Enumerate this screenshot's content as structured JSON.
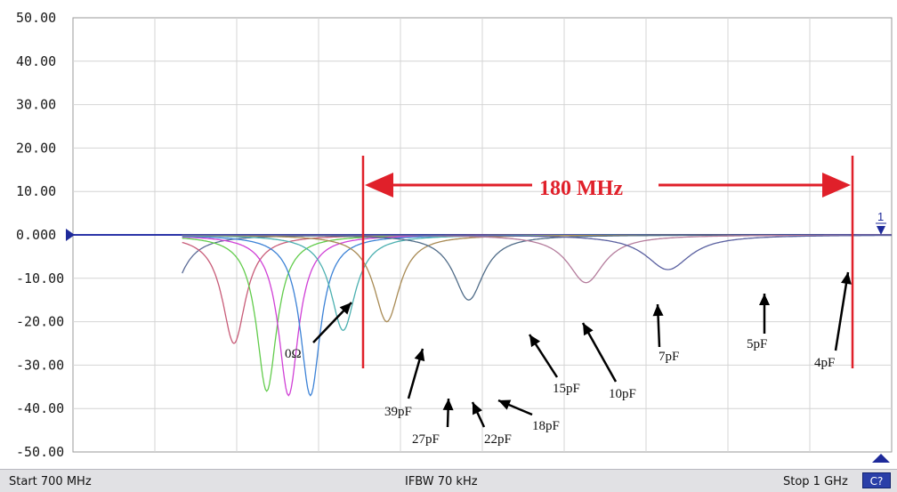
{
  "chart_data": {
    "type": "line",
    "title": "",
    "xlabel": "",
    "ylabel": "",
    "xlim": [
      700,
      1000
    ],
    "ylim": [
      -50,
      50
    ],
    "yticks": [
      "50.00",
      "40.00",
      "30.00",
      "20.00",
      "10.00",
      "0.000",
      "-10.00",
      "-20.00",
      "-30.00",
      "-40.00",
      "-50.00"
    ],
    "grid": true,
    "x_unit": "MHz",
    "series": [
      {
        "name": "0Ω",
        "resonance_mhz": 734,
        "min_db": -17,
        "color": "#5a6a96"
      },
      {
        "name": "39pF",
        "resonance_mhz": 759,
        "min_db": -25,
        "color": "#c85c78"
      },
      {
        "name": "27pF",
        "resonance_mhz": 771,
        "min_db": -36,
        "color": "#62cc4c"
      },
      {
        "name": "22pF",
        "resonance_mhz": 779,
        "min_db": -37,
        "color": "#d040d6"
      },
      {
        "name": "18pF",
        "resonance_mhz": 787,
        "min_db": -37,
        "color": "#3c82d6"
      },
      {
        "name": "15pF",
        "resonance_mhz": 799,
        "min_db": -22,
        "color": "#4cb0b0"
      },
      {
        "name": "10pF",
        "resonance_mhz": 815,
        "min_db": -20,
        "color": "#a88a54"
      },
      {
        "name": "7pF",
        "resonance_mhz": 845,
        "min_db": -15,
        "color": "#506c88"
      },
      {
        "name": "5pF",
        "resonance_mhz": 888,
        "min_db": -11,
        "color": "#b47c9c"
      },
      {
        "name": "4pF",
        "resonance_mhz": 918,
        "min_db": -8,
        "color": "#5a60a0"
      }
    ],
    "annotations": {
      "span_label": "180 MHz",
      "series_labels": [
        "0Ω",
        "39pF",
        "27pF",
        "22pF",
        "18pF",
        "15pF",
        "10pF",
        "7pF",
        "5pF",
        "4pF"
      ],
      "trace_marker": "1"
    }
  },
  "status_bar": {
    "start": "Start 700 MHz",
    "ifbw": "IFBW 70 kHz",
    "stop": "Stop 1 GHz",
    "button": "C?"
  }
}
